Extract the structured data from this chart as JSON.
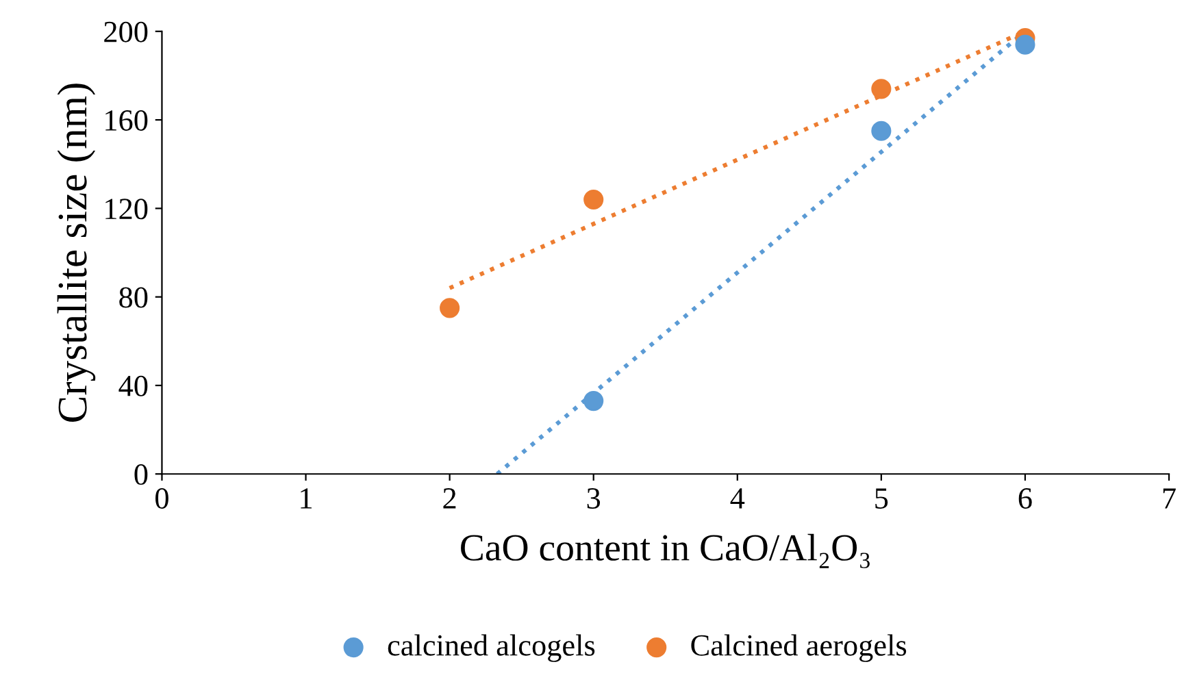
{
  "chart_data": {
    "type": "scatter",
    "xlabel": "CaO content in CaO/Al₂O₃",
    "ylabel": "Crystallite size (nm)",
    "xlim": [
      0,
      7
    ],
    "xticks": [
      0,
      1,
      2,
      3,
      4,
      5,
      6,
      7
    ],
    "ylim": [
      0,
      200
    ],
    "yticks": [
      0,
      40,
      80,
      120,
      160,
      200
    ],
    "grid": false,
    "legend": "bottom",
    "marker": "circle",
    "series": [
      {
        "name": "calcined alcogels",
        "color": "#5b9bd5",
        "x": [
          3,
          5,
          6
        ],
        "values": [
          33,
          155,
          194
        ]
      },
      {
        "name": "Calcined aerogels",
        "color": "#ed7d31",
        "x": [
          2,
          3,
          5,
          6
        ],
        "values": [
          75,
          124,
          174,
          197
        ]
      },
      {
        "type": "line",
        "line_style": "dotted",
        "color": "#5b9bd5",
        "x": [
          2.33,
          6
        ],
        "values": [
          0,
          200
        ],
        "marker": "none"
      },
      {
        "type": "line",
        "line_style": "dotted",
        "color": "#ed7d31",
        "x": [
          2,
          6
        ],
        "values": [
          84,
          200
        ],
        "marker": "none"
      }
    ]
  }
}
